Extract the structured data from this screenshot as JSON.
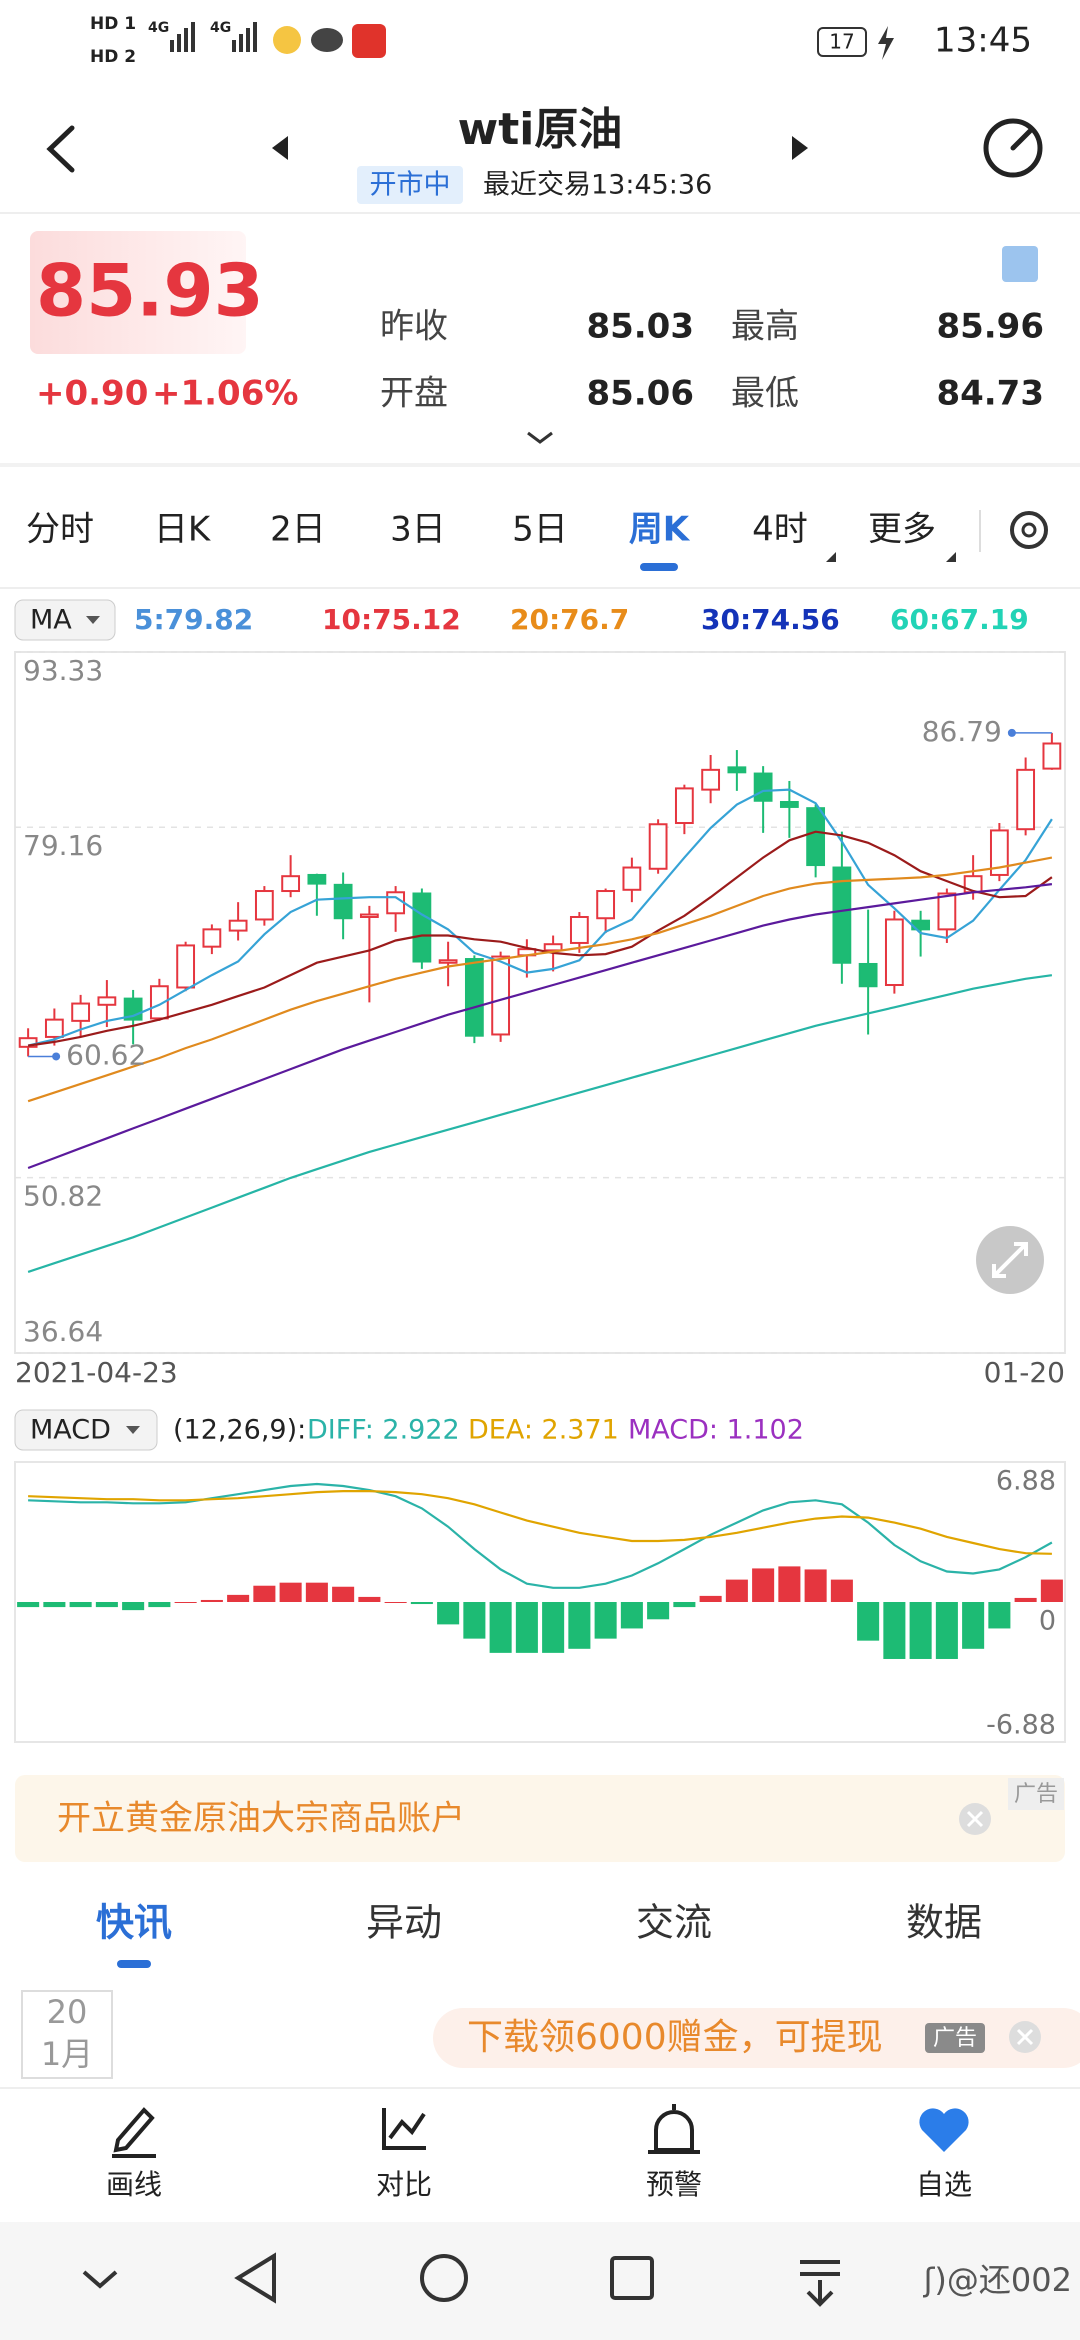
{
  "status_bar": {
    "sim1": "HD 1",
    "sim2": "HD 2",
    "net1": "4G",
    "net2": "4G",
    "battery": "17",
    "time": "13:45"
  },
  "header": {
    "title": "wti原油",
    "status": "开市中",
    "last_trade": "最近交易13:45:36"
  },
  "quote": {
    "price": "85.93",
    "change": "+0.90",
    "change_pct": "+1.06%",
    "stats": [
      {
        "label": "昨收",
        "value": "85.03"
      },
      {
        "label": "最高",
        "value": "85.96"
      },
      {
        "label": "开盘",
        "value": "85.06"
      },
      {
        "label": "最低",
        "value": "84.73"
      }
    ]
  },
  "period_tabs": {
    "items": [
      "分时",
      "日K",
      "2日",
      "3日",
      "5日",
      "周K",
      "4时",
      "更多"
    ],
    "active": 5
  },
  "chart_data": [
    {
      "type": "candlestick",
      "indicator": "MA",
      "categories": [
        "2021-04-23",
        null,
        null,
        null,
        null,
        null,
        null,
        null,
        null,
        null,
        null,
        null,
        null,
        null,
        null,
        null,
        null,
        null,
        null,
        null,
        null,
        null,
        null,
        null,
        null,
        null,
        null,
        null,
        null,
        null,
        null,
        null,
        null,
        null,
        null,
        null,
        null,
        null,
        null,
        "01-20"
      ],
      "open": [
        61.4,
        62.2,
        63.5,
        64.8,
        65.3,
        63.7,
        66.2,
        69.5,
        70.8,
        71.7,
        74.0,
        75.3,
        74.5,
        71.9,
        72.2,
        73.8,
        68.2,
        68.5,
        62.4,
        68.8,
        69.2,
        69.8,
        71.8,
        74.1,
        75.8,
        79.5,
        82.2,
        84.0,
        83.5,
        81.2,
        80.7,
        75.9,
        68.1,
        66.4,
        71.6,
        70.9,
        73.9,
        75.3,
        79.0,
        83.9
      ],
      "high": [
        62.9,
        64.5,
        65.6,
        66.8,
        66.0,
        66.9,
        69.9,
        71.3,
        73.1,
        74.4,
        76.9,
        75.4,
        75.5,
        72.8,
        74.4,
        74.2,
        69.9,
        68.8,
        69.1,
        70.1,
        70.4,
        72.3,
        74.2,
        76.7,
        79.8,
        82.6,
        85.0,
        85.4,
        84.1,
        82.9,
        81.0,
        78.8,
        72.5,
        72.4,
        72.4,
        74.2,
        76.9,
        79.5,
        84.8,
        86.79
      ],
      "low": [
        60.62,
        61.5,
        62.2,
        63.0,
        61.6,
        63.5,
        65.9,
        68.9,
        70.0,
        71.2,
        73.5,
        72.0,
        70.1,
        65.0,
        70.7,
        67.7,
        66.3,
        61.7,
        61.8,
        67.0,
        67.5,
        69.0,
        70.6,
        73.1,
        75.4,
        78.6,
        81.1,
        82.1,
        78.7,
        78.3,
        75.1,
        66.5,
        62.4,
        65.7,
        68.7,
        69.8,
        73.3,
        74.8,
        78.5,
        83.8
      ],
      "close": [
        62.1,
        63.6,
        64.9,
        65.4,
        63.6,
        66.3,
        69.6,
        70.9,
        71.6,
        74.0,
        75.2,
        74.6,
        71.8,
        72.1,
        73.9,
        68.3,
        68.4,
        62.3,
        68.7,
        69.3,
        69.7,
        71.9,
        74.0,
        75.9,
        79.4,
        82.3,
        83.8,
        83.6,
        81.3,
        80.8,
        76.1,
        68.2,
        66.3,
        71.7,
        70.9,
        73.8,
        75.2,
        78.9,
        83.8,
        85.93
      ],
      "up_color": "#e5363f",
      "down_color": "#1dbb74",
      "series": [
        {
          "name": "5:79.82",
          "color": "#36a3d6",
          "label_color": "#4a90d9",
          "values": [
            61.5,
            62,
            62.8,
            63.5,
            63.9,
            64.8,
            66,
            67.2,
            68.3,
            70.5,
            72.3,
            73.3,
            73.4,
            73.5,
            73.5,
            72.1,
            70.9,
            69.0,
            68.3,
            67.4,
            67.7,
            68.4,
            70.7,
            71.7,
            74.2,
            76.7,
            79.1,
            81.0,
            82.1,
            82.2,
            81.1,
            78.0,
            74.5,
            72.6,
            70.6,
            70.2,
            71.6,
            74.1,
            76.5,
            79.82
          ]
        },
        {
          "name": "10:75.12",
          "color": "#9b1b1b",
          "label_color": "#e5363f",
          "values": [
            61.5,
            61.8,
            62.2,
            62.7,
            63.1,
            63.6,
            64.2,
            64.8,
            65.5,
            66.2,
            67.2,
            68.2,
            68.7,
            69.2,
            70.0,
            70.4,
            70.4,
            70.1,
            69.9,
            69.4,
            69.0,
            68.8,
            68.9,
            69.5,
            70.8,
            72.0,
            73.5,
            75.1,
            76.7,
            78.1,
            78.8,
            78.5,
            77.9,
            76.9,
            75.6,
            74.8,
            74.0,
            73.5,
            73.6,
            75.12
          ]
        },
        {
          "name": "20:76.7",
          "color": "#e08a1e",
          "label_color": "#e88c1a",
          "values": [
            57,
            57.7,
            58.4,
            59.1,
            59.8,
            60.5,
            61.3,
            62,
            62.8,
            63.6,
            64.4,
            65.1,
            65.7,
            66.3,
            66.9,
            67.4,
            67.9,
            68.2,
            68.5,
            68.8,
            69.1,
            69.4,
            69.7,
            70.1,
            70.6,
            71.3,
            72.0,
            72.8,
            73.6,
            74.2,
            74.6,
            74.8,
            74.9,
            75.0,
            75.1,
            75.3,
            75.6,
            75.9,
            76.3,
            76.7
          ]
        },
        {
          "name": "30:74.56",
          "color": "#5b1a9c",
          "label_color": "#1433b8",
          "values": [
            51.6,
            52.4,
            53.2,
            54,
            54.8,
            55.6,
            56.4,
            57.2,
            58,
            58.8,
            59.6,
            60.4,
            61.2,
            61.9,
            62.6,
            63.3,
            64,
            64.6,
            65.2,
            65.8,
            66.4,
            67,
            67.6,
            68.2,
            68.8,
            69.4,
            70,
            70.6,
            71.2,
            71.7,
            72.1,
            72.4,
            72.7,
            73,
            73.3,
            73.6,
            73.9,
            74.1,
            74.3,
            74.56
          ]
        },
        {
          "name": "60:67.19",
          "color": "#26b5a6",
          "label_color": "#22d3b6",
          "values": [
            43.2,
            43.9,
            44.6,
            45.3,
            46,
            46.8,
            47.6,
            48.4,
            49.2,
            50,
            50.8,
            51.5,
            52.2,
            52.9,
            53.5,
            54.1,
            54.7,
            55.3,
            55.9,
            56.5,
            57.1,
            57.7,
            58.3,
            58.9,
            59.5,
            60.1,
            60.7,
            61.3,
            61.9,
            62.5,
            63.1,
            63.6,
            64.1,
            64.6,
            65.1,
            65.6,
            66.1,
            66.5,
            66.9,
            67.19
          ]
        }
      ],
      "ylim": [
        36.64,
        93.33
      ],
      "yticks": [
        93.33,
        79.16,
        50.82,
        36.64
      ],
      "grid": true
    },
    {
      "type": "macd",
      "indicator": "MACD",
      "params": "(12,26,9):",
      "up_color": "#e5363f",
      "down_color": "#1dbb74",
      "series": [
        {
          "name": "DIFF: 2.922",
          "style": "line",
          "color": "#2bb3a8",
          "values": [
            5.0,
            4.95,
            4.9,
            4.9,
            4.85,
            4.85,
            4.9,
            5.1,
            5.3,
            5.5,
            5.7,
            5.8,
            5.7,
            5.5,
            5.2,
            4.6,
            3.7,
            2.6,
            1.6,
            0.9,
            0.7,
            0.7,
            0.9,
            1.3,
            1.9,
            2.6,
            3.3,
            3.9,
            4.5,
            4.9,
            5.0,
            4.8,
            3.9,
            2.8,
            2.0,
            1.5,
            1.4,
            1.6,
            2.2,
            2.922
          ]
        },
        {
          "name": "DEA: 2.371",
          "style": "line",
          "color": "#e0a400",
          "values": [
            5.2,
            5.15,
            5.1,
            5.05,
            5.05,
            5.0,
            5.0,
            5.05,
            5.1,
            5.2,
            5.3,
            5.4,
            5.45,
            5.45,
            5.4,
            5.3,
            5.1,
            4.8,
            4.4,
            4.0,
            3.7,
            3.4,
            3.2,
            3.0,
            3.0,
            3.05,
            3.2,
            3.4,
            3.65,
            3.9,
            4.1,
            4.2,
            4.15,
            3.9,
            3.6,
            3.2,
            2.9,
            2.6,
            2.4,
            2.371
          ]
        },
        {
          "name": "MACD: 1.102",
          "style": "bar",
          "color": "#9b30c0",
          "values": [
            -0.25,
            -0.25,
            -0.25,
            -0.25,
            -0.4,
            -0.25,
            0,
            0.1,
            0.35,
            0.8,
            0.95,
            0.95,
            0.75,
            0.25,
            0,
            -0.1,
            -1.1,
            -1.8,
            -2.5,
            -2.5,
            -2.5,
            -2.3,
            -1.8,
            -1.3,
            -0.85,
            -0.25,
            0.3,
            1.1,
            1.65,
            1.75,
            1.6,
            1.1,
            -1.9,
            -2.8,
            -2.8,
            -2.8,
            -2.3,
            -1.3,
            0.2,
            1.102
          ]
        }
      ],
      "ylim": [
        -6.88,
        6.88
      ],
      "yticks": [
        6.88,
        0,
        -6.88
      ],
      "grid": false
    }
  ],
  "ad_banner": {
    "text": "开立黄金原油大宗商品账户",
    "tag": "广告"
  },
  "news_tabs": {
    "items": [
      "快讯",
      "异动",
      "交流",
      "数据"
    ],
    "active": 0
  },
  "news_date": {
    "day": "20",
    "month": "1月"
  },
  "float_ad": {
    "text": "下载领6000赠金，可提现",
    "tag": "广告"
  },
  "toolbar": [
    "画线",
    "对比",
    "预警",
    "自选"
  ],
  "watermark": "ʃ)@还002"
}
